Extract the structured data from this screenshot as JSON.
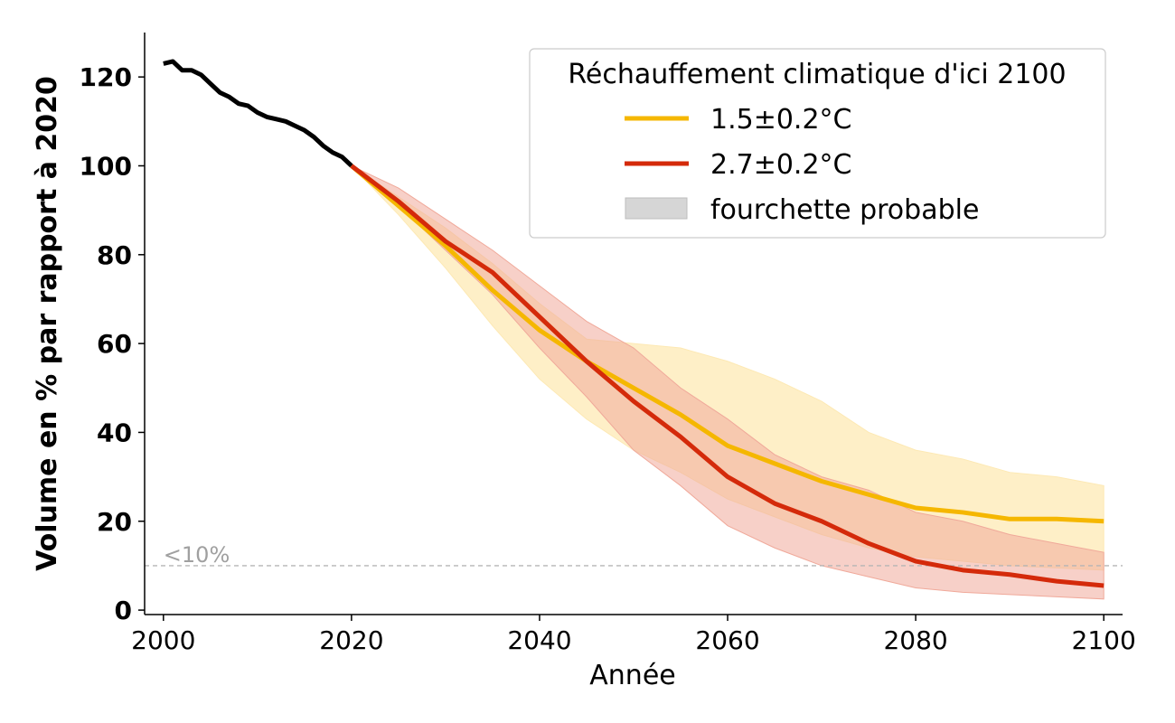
{
  "chart_data": {
    "type": "line",
    "title": "",
    "xlabel": "Année",
    "ylabel": "Volume en % par rapport à 2020",
    "xlim": [
      1998,
      2102
    ],
    "ylim": [
      -1,
      130
    ],
    "xticks": [
      2000,
      2020,
      2040,
      2060,
      2080,
      2100
    ],
    "yticks": [
      0,
      20,
      40,
      60,
      80,
      100,
      120
    ],
    "grid": false,
    "legend": {
      "title": "Réchauffement climatique d'ici 2100",
      "placement": "top-right",
      "range_label": "fourchette probable",
      "range_color": "#d6d6d6"
    },
    "historical": {
      "color": "#000000",
      "x": [
        2000,
        2001,
        2002,
        2003,
        2004,
        2005,
        2006,
        2007,
        2008,
        2009,
        2010,
        2011,
        2012,
        2013,
        2014,
        2015,
        2016,
        2017,
        2018,
        2019,
        2020
      ],
      "y": [
        123,
        123.5,
        121.5,
        121.5,
        120.5,
        118.5,
        116.5,
        115.5,
        114,
        113.5,
        112,
        111,
        110.5,
        110,
        109,
        108,
        106.5,
        104.5,
        103,
        102,
        100
      ]
    },
    "series": [
      {
        "name": "1.5±0.2°C",
        "color": "#f5b700",
        "band_color": "#fde9b4",
        "x": [
          2020,
          2025,
          2030,
          2035,
          2040,
          2045,
          2050,
          2055,
          2060,
          2065,
          2070,
          2075,
          2080,
          2085,
          2090,
          2095,
          2100
        ],
        "y": [
          100,
          91,
          82,
          72,
          63,
          56,
          50,
          44,
          37,
          33,
          29,
          26,
          23,
          22,
          20.5,
          20.5,
          20
        ],
        "lower": [
          100,
          89,
          77,
          64,
          52,
          43,
          36,
          31,
          25,
          21,
          17,
          14,
          12,
          11,
          10,
          9.5,
          9
        ],
        "upper": [
          100,
          93,
          86,
          78,
          69,
          61,
          60,
          59,
          56,
          52,
          47,
          40,
          36,
          34,
          31,
          30,
          28
        ]
      },
      {
        "name": "2.7±0.2°C",
        "color": "#d42a0a",
        "band_color": "#f0a99a",
        "x": [
          2020,
          2025,
          2030,
          2035,
          2040,
          2045,
          2050,
          2055,
          2060,
          2065,
          2070,
          2075,
          2080,
          2085,
          2090,
          2095,
          2100
        ],
        "y": [
          100,
          92,
          83,
          76,
          66,
          56,
          47,
          39,
          30,
          24,
          20,
          15,
          11,
          9,
          8,
          6.5,
          5.5
        ],
        "lower": [
          100,
          91,
          81,
          71,
          59,
          48,
          36,
          28,
          19,
          14,
          10,
          7.5,
          5,
          4,
          3.5,
          3,
          2.5
        ],
        "upper": [
          100,
          95,
          88,
          81,
          73,
          65,
          59,
          50,
          43,
          35,
          30,
          27,
          22,
          20,
          17,
          15,
          13
        ]
      }
    ],
    "threshold": {
      "y": 10,
      "label": "<10%",
      "color": "#b5b5b5"
    }
  }
}
